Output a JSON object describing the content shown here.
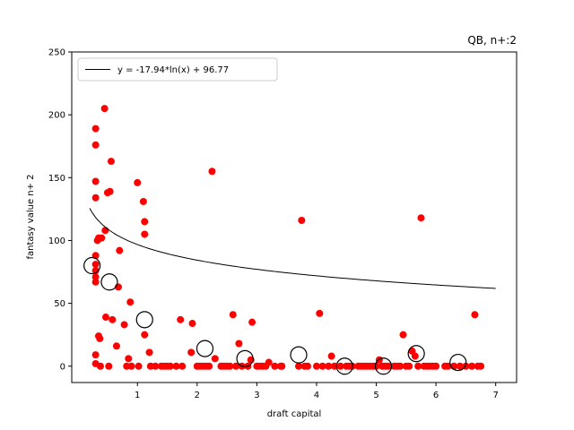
{
  "chart_data": {
    "type": "scatter",
    "title": "QB, n+:2",
    "xlabel": "draft capital",
    "ylabel": "fantasy value n+ 2",
    "xlim": [
      -0.1,
      7.35
    ],
    "ylim": [
      -13,
      250
    ],
    "xticks": [
      1,
      2,
      3,
      4,
      5,
      6,
      7
    ],
    "yticks": [
      0,
      50,
      100,
      150,
      200,
      250
    ],
    "grid": false,
    "legend": {
      "placement": "top-left",
      "entries": [
        "y = -17.94*ln(x) + 96.77"
      ]
    },
    "colors": {
      "points": "#ff0000",
      "fit_line": "#000000",
      "means": "#000000"
    },
    "fit": {
      "a": -17.94,
      "b": 96.77,
      "x_range": [
        0.2,
        7.0
      ],
      "label": "y = -17.94*ln(x) + 96.77"
    },
    "points": [
      [
        0.3,
        189
      ],
      [
        0.3,
        176
      ],
      [
        0.3,
        147
      ],
      [
        0.3,
        134
      ],
      [
        0.3,
        88
      ],
      [
        0.3,
        81
      ],
      [
        0.3,
        76
      ],
      [
        0.3,
        71
      ],
      [
        0.3,
        67
      ],
      [
        0.3,
        9
      ],
      [
        0.3,
        2
      ],
      [
        0.33,
        100
      ],
      [
        0.35,
        102
      ],
      [
        0.35,
        24
      ],
      [
        0.37,
        22
      ],
      [
        0.38,
        0
      ],
      [
        0.4,
        102
      ],
      [
        0.45,
        205
      ],
      [
        0.46,
        108
      ],
      [
        0.47,
        39
      ],
      [
        0.5,
        138
      ],
      [
        0.52,
        0
      ],
      [
        0.54,
        139
      ],
      [
        0.56,
        163
      ],
      [
        0.58,
        37
      ],
      [
        0.65,
        16
      ],
      [
        0.68,
        63
      ],
      [
        0.7,
        92
      ],
      [
        0.78,
        33
      ],
      [
        0.82,
        0
      ],
      [
        0.85,
        6
      ],
      [
        0.88,
        51
      ],
      [
        0.9,
        0
      ],
      [
        1.0,
        146
      ],
      [
        1.02,
        0
      ],
      [
        1.1,
        131
      ],
      [
        1.12,
        115
      ],
      [
        1.12,
        105
      ],
      [
        1.12,
        25
      ],
      [
        1.2,
        11
      ],
      [
        1.22,
        0
      ],
      [
        1.3,
        0
      ],
      [
        1.4,
        0
      ],
      [
        1.45,
        0
      ],
      [
        1.5,
        0
      ],
      [
        1.55,
        0
      ],
      [
        1.65,
        0
      ],
      [
        1.72,
        37
      ],
      [
        1.75,
        0
      ],
      [
        1.9,
        11
      ],
      [
        1.92,
        34
      ],
      [
        2.0,
        0
      ],
      [
        2.05,
        0
      ],
      [
        2.1,
        0
      ],
      [
        2.15,
        0
      ],
      [
        2.2,
        0
      ],
      [
        2.25,
        155
      ],
      [
        2.3,
        6
      ],
      [
        2.4,
        0
      ],
      [
        2.45,
        0
      ],
      [
        2.5,
        0
      ],
      [
        2.55,
        0
      ],
      [
        2.6,
        41
      ],
      [
        2.65,
        0
      ],
      [
        2.7,
        18
      ],
      [
        2.75,
        0
      ],
      [
        2.85,
        0
      ],
      [
        2.9,
        5
      ],
      [
        2.92,
        35
      ],
      [
        3.0,
        0
      ],
      [
        3.05,
        0
      ],
      [
        3.1,
        0
      ],
      [
        3.15,
        0
      ],
      [
        3.2,
        3
      ],
      [
        3.3,
        0
      ],
      [
        3.4,
        0
      ],
      [
        3.42,
        0
      ],
      [
        3.7,
        0
      ],
      [
        3.75,
        116
      ],
      [
        3.8,
        0
      ],
      [
        3.85,
        0
      ],
      [
        4.0,
        0
      ],
      [
        4.05,
        42
      ],
      [
        4.1,
        0
      ],
      [
        4.2,
        0
      ],
      [
        4.25,
        8
      ],
      [
        4.3,
        0
      ],
      [
        4.4,
        0
      ],
      [
        4.5,
        0
      ],
      [
        4.55,
        0
      ],
      [
        4.6,
        0
      ],
      [
        4.7,
        0
      ],
      [
        4.75,
        0
      ],
      [
        4.8,
        0
      ],
      [
        4.85,
        0
      ],
      [
        4.9,
        0
      ],
      [
        4.95,
        0
      ],
      [
        5.0,
        0
      ],
      [
        5.05,
        5
      ],
      [
        5.1,
        0
      ],
      [
        5.15,
        0
      ],
      [
        5.2,
        0
      ],
      [
        5.3,
        0
      ],
      [
        5.35,
        0
      ],
      [
        5.4,
        0
      ],
      [
        5.45,
        25
      ],
      [
        5.5,
        0
      ],
      [
        5.55,
        0
      ],
      [
        5.6,
        12
      ],
      [
        5.65,
        8
      ],
      [
        5.7,
        0
      ],
      [
        5.75,
        118
      ],
      [
        5.8,
        0
      ],
      [
        5.85,
        0
      ],
      [
        5.9,
        0
      ],
      [
        5.95,
        0
      ],
      [
        6.0,
        0
      ],
      [
        6.15,
        0
      ],
      [
        6.2,
        0
      ],
      [
        6.3,
        0
      ],
      [
        6.4,
        0
      ],
      [
        6.5,
        0
      ],
      [
        6.6,
        0
      ],
      [
        6.65,
        41
      ],
      [
        6.7,
        0
      ],
      [
        6.75,
        0
      ]
    ],
    "means": [
      [
        0.24,
        80
      ],
      [
        0.53,
        67
      ],
      [
        1.12,
        37
      ],
      [
        2.13,
        14
      ],
      [
        2.8,
        6
      ],
      [
        3.7,
        9
      ],
      [
        4.47,
        0
      ],
      [
        5.12,
        0
      ],
      [
        5.67,
        10
      ],
      [
        6.37,
        3
      ]
    ]
  }
}
